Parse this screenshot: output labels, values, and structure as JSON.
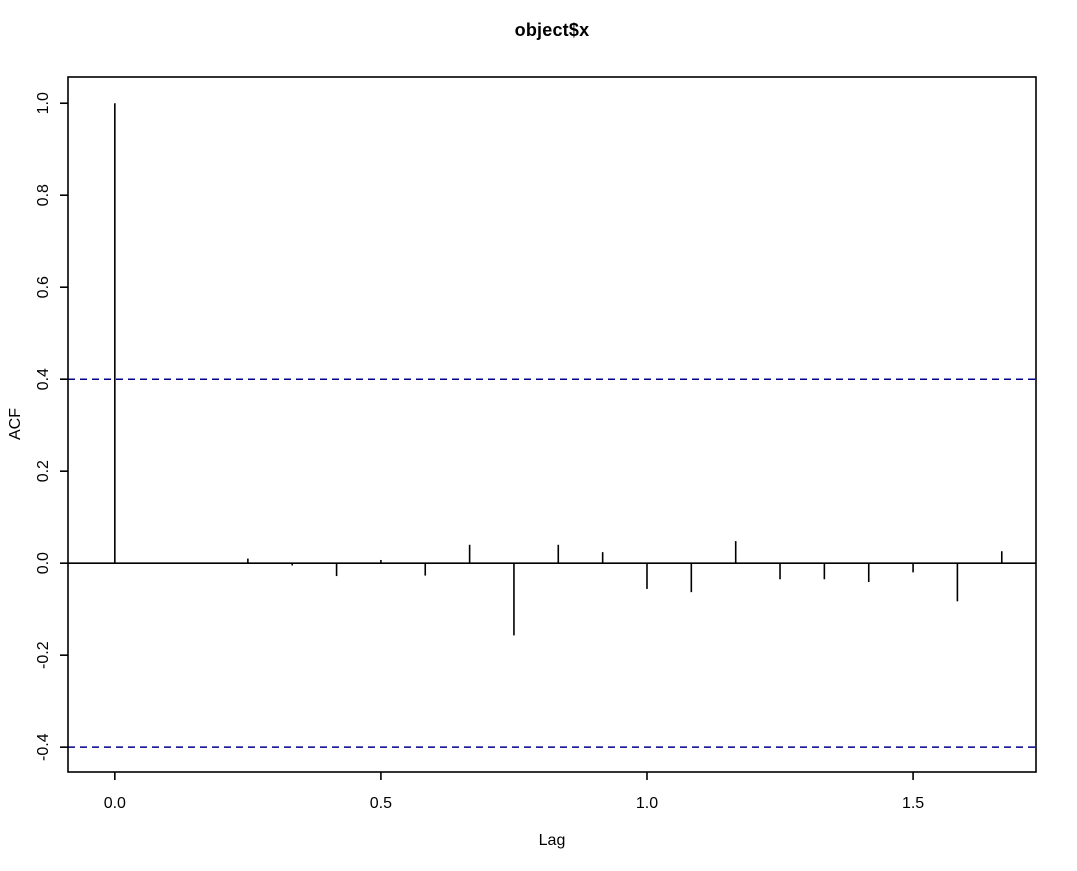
{
  "chart_data": {
    "type": "bar",
    "subtype": "acf-stem-plot",
    "title": "object$x",
    "xlabel": "Lag",
    "ylabel": "ACF",
    "x": [
      0,
      0.0833,
      0.1667,
      0.25,
      0.3333,
      0.4167,
      0.5,
      0.5833,
      0.6667,
      0.75,
      0.8333,
      0.9167,
      1.0,
      1.0833,
      1.1667,
      1.25,
      1.3333,
      1.4167,
      1.5,
      1.5833,
      1.6667
    ],
    "values": [
      1.0,
      0.0,
      0.0,
      0.01,
      -0.005,
      -0.028,
      0.007,
      -0.027,
      0.04,
      -0.157,
      0.04,
      0.024,
      -0.056,
      -0.063,
      0.048,
      -0.035,
      -0.035,
      -0.041,
      -0.02,
      -0.083,
      0.026
    ],
    "confidence_interval": 0.4,
    "xticks": [
      0.0,
      0.5,
      1.0,
      1.5
    ],
    "xtick_labels": [
      "0.0",
      "0.5",
      "1.0",
      "1.5"
    ],
    "yticks": [
      -0.4,
      -0.2,
      0.0,
      0.2,
      0.4,
      0.6,
      0.8,
      1.0
    ],
    "ytick_labels": [
      "-0.4",
      "-0.2",
      "0.0",
      "0.2",
      "0.4",
      "0.6",
      "0.8",
      "1.0"
    ],
    "xlim": [
      -0.088,
      1.731
    ],
    "ylim": [
      -0.454,
      1.057
    ],
    "grid": false,
    "legend": null,
    "colors": {
      "spike": "#000000",
      "axis": "#000000",
      "ci_line": "#00008B",
      "background": "#FFFFFF",
      "text": "#000000"
    }
  }
}
